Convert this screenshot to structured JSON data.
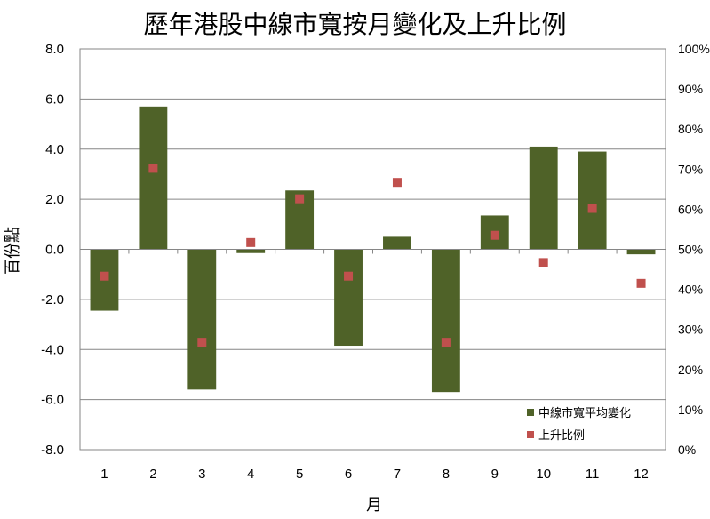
{
  "chart_data": {
    "type": "bar",
    "title": "歷年港股中線市寬按月變化及上升比例",
    "xlabel": "月",
    "ylabel": "百份點",
    "categories": [
      "1",
      "2",
      "3",
      "4",
      "5",
      "6",
      "7",
      "8",
      "9",
      "10",
      "11",
      "12"
    ],
    "series": [
      {
        "name": "中線市寬平均變化",
        "type": "bar",
        "axis": "left",
        "color": "#4f6228",
        "values": [
          -2.45,
          5.7,
          -5.6,
          -0.15,
          2.35,
          -3.85,
          0.5,
          -5.7,
          1.35,
          4.1,
          3.9,
          -0.2
        ]
      },
      {
        "name": "上升比例",
        "type": "scatter",
        "axis": "right",
        "color": "#c0504d",
        "values": [
          43.3,
          70.2,
          26.8,
          51.7,
          62.6,
          43.3,
          66.7,
          26.8,
          53.5,
          46.7,
          60.2,
          41.5
        ]
      }
    ],
    "ylim": [
      -8,
      8
    ],
    "yticks": [
      "8.0",
      "6.0",
      "4.0",
      "2.0",
      "0.0",
      "-2.0",
      "-4.0",
      "-6.0",
      "-8.0"
    ],
    "y2lim": [
      0,
      100
    ],
    "y2ticks": [
      "100%",
      "90%",
      "80%",
      "70%",
      "60%",
      "50%",
      "40%",
      "30%",
      "20%",
      "10%",
      "0%"
    ],
    "grid": true,
    "legend_position": "bottom-right"
  }
}
